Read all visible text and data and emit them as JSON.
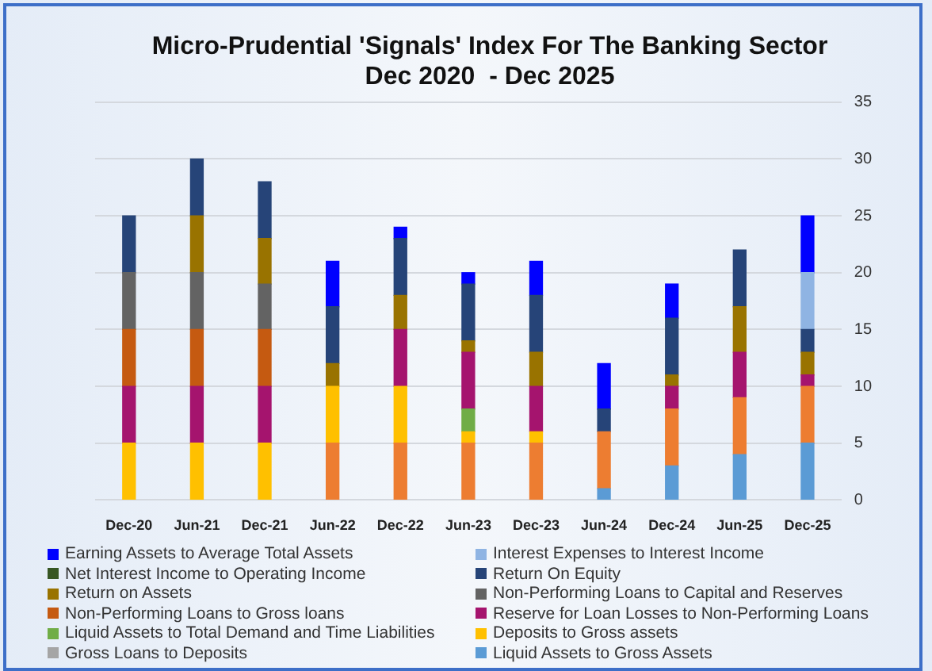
{
  "chart_data": {
    "type": "bar",
    "stacked": true,
    "title": "Micro-Prudential 'Signals' Index For The Banking Sector\nDec 2020  - Dec 2025",
    "categories": [
      "Dec-20",
      "Jun-21",
      "Dec-21",
      "Jun-22",
      "Dec-22",
      "Jun-23",
      "Dec-23",
      "Jun-24",
      "Dec-24",
      "Jun-25",
      "Dec-25"
    ],
    "series": [
      {
        "name": "Liquid Assets to Gross Assets",
        "color": "#5b9bd5",
        "values": [
          null,
          null,
          null,
          null,
          null,
          null,
          null,
          1,
          3,
          4,
          5
        ]
      },
      {
        "color": "#ed7d31",
        "values": [
          null,
          null,
          null,
          5,
          5,
          5,
          5,
          5,
          5,
          5,
          5
        ]
      },
      {
        "name": "Gross Loans to Deposits",
        "color": "#a5a5a5",
        "values": [
          null,
          null,
          null,
          null,
          null,
          null,
          null,
          null,
          null,
          null,
          null
        ]
      },
      {
        "name": "Deposits to Gross assets",
        "color": "#ffc000",
        "values": [
          5,
          5,
          5,
          5,
          5,
          1,
          1,
          null,
          null,
          null,
          null
        ]
      },
      {
        "name": "Liquid Assets to Total Demand and Time Liabilities",
        "color": "#70ad47",
        "values": [
          null,
          null,
          null,
          null,
          null,
          2,
          null,
          null,
          null,
          null,
          null
        ]
      },
      {
        "name": "Reserve for Loan Losses to Non-Performing Loans",
        "color": "#a5146e",
        "values": [
          5,
          5,
          5,
          null,
          5,
          5,
          4,
          null,
          2,
          4,
          1
        ]
      },
      {
        "name": "Non-Performing Loans to Gross loans",
        "color": "#c55a11",
        "values": [
          5,
          5,
          5,
          null,
          null,
          null,
          null,
          null,
          null,
          null,
          null
        ]
      },
      {
        "name": "Non-Performing Loans to Capital and Reserves",
        "color": "#636363",
        "values": [
          5,
          5,
          4,
          null,
          null,
          null,
          null,
          null,
          null,
          null,
          null
        ]
      },
      {
        "name": "Return on Assets",
        "color": "#997300",
        "values": [
          null,
          5,
          4,
          2,
          3,
          1,
          3,
          null,
          1,
          4,
          2
        ]
      },
      {
        "name": "Return On Equity",
        "color": "#264478",
        "values": [
          5,
          5,
          5,
          5,
          5,
          5,
          5,
          2,
          5,
          5,
          2
        ]
      },
      {
        "name": "Net Interest Income to Operating Income",
        "color": "#375623",
        "values": [
          null,
          null,
          null,
          null,
          null,
          null,
          null,
          null,
          null,
          null,
          null
        ]
      },
      {
        "name": "Interest Expenses to Interest Income",
        "color": "#8fb4e3",
        "values": [
          null,
          null,
          null,
          null,
          null,
          null,
          null,
          null,
          null,
          null,
          5
        ]
      },
      {
        "name": "Earning Assets to Average Total Assets",
        "color": "#0000ff",
        "values": [
          null,
          null,
          null,
          4,
          1,
          1,
          3,
          4,
          3,
          null,
          5
        ]
      }
    ],
    "ylim": [
      0,
      35
    ],
    "yticks": [
      0,
      5,
      10,
      15,
      20,
      25,
      30,
      35
    ],
    "grid": "y",
    "legend": "bottom"
  }
}
